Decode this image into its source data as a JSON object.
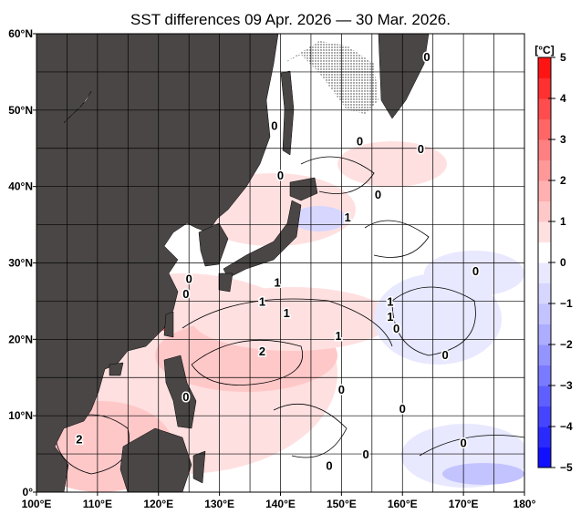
{
  "title": "SST differences 09 Apr. 2026 — 30 Mar. 2026.",
  "map": {
    "lon_range": [
      100,
      180
    ],
    "lat_range": [
      0,
      60
    ],
    "grid_step_deg": 5,
    "x_labels": [
      "100°E",
      "110°E",
      "120°E",
      "130°E",
      "140°E",
      "150°E",
      "160°E",
      "170°E",
      "180°"
    ],
    "y_labels": [
      "0°",
      "10°N",
      "20°N",
      "30°N",
      "40°N",
      "50°N",
      "60°N"
    ],
    "land_color": "#4a4646",
    "contour_labels": [
      {
        "text": "0",
        "lon": 124.5,
        "lat": 12.5
      },
      {
        "text": "2",
        "lon": 107,
        "lat": 7
      },
      {
        "text": "2",
        "lon": 137,
        "lat": 18.5
      },
      {
        "text": "1",
        "lon": 137,
        "lat": 25
      },
      {
        "text": "1",
        "lon": 139.5,
        "lat": 27.5
      },
      {
        "text": "1",
        "lon": 141,
        "lat": 23.5
      },
      {
        "text": "0",
        "lon": 124.5,
        "lat": 26
      },
      {
        "text": "0",
        "lon": 125,
        "lat": 28
      },
      {
        "text": "0",
        "lon": 148,
        "lat": 3.5
      },
      {
        "text": "0",
        "lon": 154,
        "lat": 5
      },
      {
        "text": "0",
        "lon": 150,
        "lat": 13.5
      },
      {
        "text": "0",
        "lon": 160,
        "lat": 11
      },
      {
        "text": "0",
        "lon": 170,
        "lat": 6.5
      },
      {
        "text": "0",
        "lon": 167,
        "lat": 18
      },
      {
        "text": "0",
        "lon": 172,
        "lat": 29
      },
      {
        "text": "1",
        "lon": 149.5,
        "lat": 20.5
      },
      {
        "text": "1",
        "lon": 158,
        "lat": 23
      },
      {
        "text": "1",
        "lon": 158,
        "lat": 25
      },
      {
        "text": "0",
        "lon": 159,
        "lat": 21.5
      },
      {
        "text": "1",
        "lon": 151,
        "lat": 36
      },
      {
        "text": "0",
        "lon": 156,
        "lat": 39
      },
      {
        "text": "0",
        "lon": 139,
        "lat": 48
      },
      {
        "text": "0",
        "lon": 153,
        "lat": 46
      },
      {
        "text": "0",
        "lon": 164,
        "lat": 57
      },
      {
        "text": "0",
        "lon": 163,
        "lat": 45
      },
      {
        "text": "0",
        "lon": 140,
        "lat": 41.5
      }
    ]
  },
  "colorbar": {
    "unit": "[°C]",
    "ticks": [
      "5",
      "4",
      "3",
      "2",
      "1",
      "0",
      "−1",
      "−2",
      "−3",
      "−4",
      "−5"
    ],
    "range": [
      -5,
      5
    ],
    "step": 0.5,
    "colors": [
      "#1010ff",
      "#2a2aff",
      "#4545ff",
      "#5f5fff",
      "#7a7aff",
      "#9494ff",
      "#adadff",
      "#c3c3ff",
      "#d6d6ff",
      "#e8e8ff",
      "#ffffff",
      "#ffffff",
      "#ffe0e0",
      "#ffc8c8",
      "#ffb0b0",
      "#ff9898",
      "#ff8080",
      "#ff6666",
      "#ff4c4c",
      "#ff3030",
      "#ff1414"
    ]
  }
}
